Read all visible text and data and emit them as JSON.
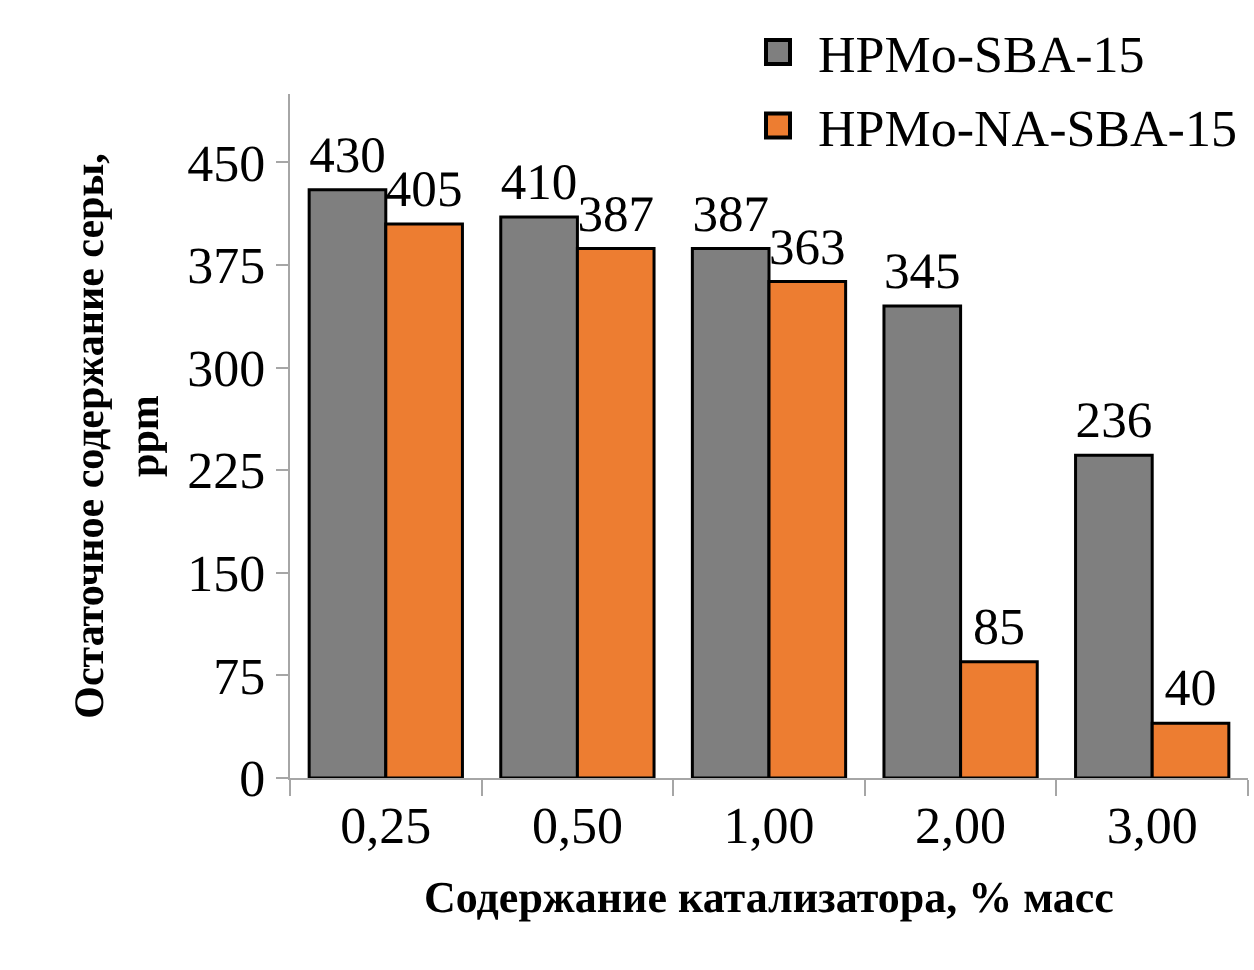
{
  "chart_data": {
    "type": "bar",
    "categories": [
      "0,25",
      "0,50",
      "1,00",
      "2,00",
      "3,00"
    ],
    "series": [
      {
        "name": "HPMo-SBA-15",
        "color": "#7f7f7f",
        "values": [
          430,
          410,
          387,
          345,
          236
        ]
      },
      {
        "name": "HPMo-NA-SBA-15",
        "color": "#ed7d31",
        "values": [
          405,
          387,
          363,
          85,
          40
        ]
      }
    ],
    "xlabel": "Содержание катализатора, % масс",
    "ylabel": "Остаточное содержание серы, ppm",
    "ylim": [
      0,
      500
    ],
    "yticks": [
      0,
      75,
      150,
      225,
      300,
      375,
      450
    ],
    "data_labels": true,
    "legend": "top right"
  }
}
